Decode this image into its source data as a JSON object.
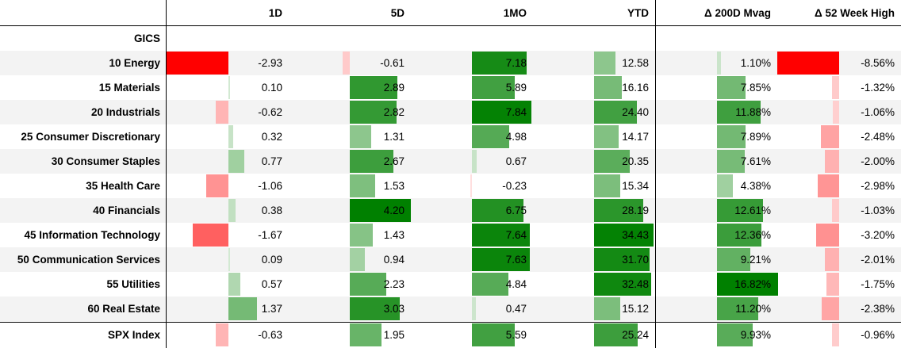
{
  "table": {
    "columns": [
      "1D",
      "5D",
      "1MO",
      "YTD",
      "Δ 200D Mvag",
      "Δ 52 Week High"
    ],
    "row_header_label": "GICS",
    "rows": [
      {
        "label": "10 Energy",
        "values": [
          "-2.93",
          "-0.61",
          "7.18",
          "12.58",
          "1.10%",
          "-8.56%"
        ],
        "shade": [
          -1.0,
          -0.12,
          0.9,
          0.35,
          0.07,
          -1.0
        ]
      },
      {
        "label": "15 Materials",
        "values": [
          "0.10",
          "2.89",
          "5.89",
          "16.16",
          "7.85%",
          "-1.32%"
        ],
        "shade": [
          0.03,
          0.78,
          0.7,
          0.45,
          0.47,
          -0.12
        ]
      },
      {
        "label": "20 Industrials",
        "values": [
          "-0.62",
          "2.82",
          "7.84",
          "24.40",
          "11.88%",
          "-1.06%"
        ],
        "shade": [
          -0.21,
          0.76,
          0.98,
          0.7,
          0.71,
          -0.1
        ]
      },
      {
        "label": "25 Consumer Discretionary",
        "values": [
          "0.32",
          "1.31",
          "4.98",
          "14.17",
          "7.89%",
          "-2.48%"
        ],
        "shade": [
          0.08,
          0.35,
          0.61,
          0.4,
          0.47,
          -0.29
        ]
      },
      {
        "label": "30 Consumer Staples",
        "values": [
          "0.77",
          "2.67",
          "0.67",
          "20.35",
          "7.61%",
          "-2.00%"
        ],
        "shade": [
          0.26,
          0.72,
          0.08,
          0.58,
          0.45,
          -0.23
        ]
      },
      {
        "label": "35 Health Care",
        "values": [
          "-1.06",
          "1.53",
          "-0.23",
          "15.34",
          "4.38%",
          "-2.98%"
        ],
        "shade": [
          -0.36,
          0.42,
          -0.03,
          0.43,
          0.26,
          -0.35
        ]
      },
      {
        "label": "40 Financials",
        "values": [
          "0.38",
          "4.20",
          "6.75",
          "28.19",
          "12.61%",
          "-1.03%"
        ],
        "shade": [
          0.11,
          1.0,
          0.84,
          0.8,
          0.75,
          -0.12
        ]
      },
      {
        "label": "45 Information Technology",
        "values": [
          "-1.67",
          "1.43",
          "7.64",
          "34.43",
          "12.36%",
          "-3.20%"
        ],
        "shade": [
          -0.58,
          0.38,
          0.95,
          0.98,
          0.73,
          -0.37
        ]
      },
      {
        "label": "50 Communication Services",
        "values": [
          "0.09",
          "0.94",
          "7.63",
          "31.70",
          "9.21%",
          "-2.01%"
        ],
        "shade": [
          0.03,
          0.25,
          0.95,
          0.91,
          0.55,
          -0.23
        ]
      },
      {
        "label": "55 Utilities",
        "values": [
          "0.57",
          "2.23",
          "4.84",
          "32.48",
          "16.82%",
          "-1.75%"
        ],
        "shade": [
          0.19,
          0.6,
          0.6,
          0.93,
          1.0,
          -0.2
        ]
      },
      {
        "label": "60 Real Estate",
        "values": [
          "1.37",
          "3.03",
          "0.47",
          "15.12",
          "11.20%",
          "-2.38%"
        ],
        "shade": [
          0.46,
          0.82,
          0.06,
          0.43,
          0.67,
          -0.28
        ]
      }
    ],
    "total_row": {
      "label": "SPX Index",
      "values": [
        "-0.63",
        "1.95",
        "5.59",
        "25.24",
        "9.93%",
        "-0.96%"
      ],
      "shade": [
        -0.21,
        0.52,
        0.7,
        0.72,
        0.59,
        -0.11
      ]
    }
  },
  "colors": {
    "positive": "#008000",
    "negative": "#ff0000",
    "stripe": "#f3f3f3",
    "line": "#000000"
  },
  "chart_data": {
    "type": "table",
    "columns": [
      "1D",
      "5D",
      "1MO",
      "YTD",
      "Δ 200D Mvag",
      "Δ 52 Week High"
    ],
    "categories": [
      "10 Energy",
      "15 Materials",
      "20 Industrials",
      "25 Consumer Discretionary",
      "30 Consumer Staples",
      "35 Health Care",
      "40 Financials",
      "45 Information Technology",
      "50 Communication Services",
      "55 Utilities",
      "60 Real Estate",
      "SPX Index"
    ],
    "series": [
      {
        "name": "1D",
        "values": [
          -2.93,
          0.1,
          -0.62,
          0.32,
          0.77,
          -1.06,
          0.38,
          -1.67,
          0.09,
          0.57,
          1.37,
          -0.63
        ]
      },
      {
        "name": "5D",
        "values": [
          -0.61,
          2.89,
          2.82,
          1.31,
          2.67,
          1.53,
          4.2,
          1.43,
          0.94,
          2.23,
          3.03,
          1.95
        ]
      },
      {
        "name": "1MO",
        "values": [
          7.18,
          5.89,
          7.84,
          4.98,
          0.67,
          -0.23,
          6.75,
          7.64,
          7.63,
          4.84,
          0.47,
          5.59
        ]
      },
      {
        "name": "YTD",
        "values": [
          12.58,
          16.16,
          24.4,
          14.17,
          20.35,
          15.34,
          28.19,
          34.43,
          31.7,
          32.48,
          15.12,
          25.24
        ]
      },
      {
        "name": "Δ 200D Mvag",
        "values": [
          1.1,
          7.85,
          11.88,
          7.89,
          7.61,
          4.38,
          12.61,
          12.36,
          9.21,
          16.82,
          11.2,
          9.93
        ]
      },
      {
        "name": "Δ 52 Week High",
        "values": [
          -8.56,
          -1.32,
          -1.06,
          -2.48,
          -2.0,
          -2.98,
          -1.03,
          -3.2,
          -2.01,
          -1.75,
          -2.38,
          -0.96
        ]
      }
    ]
  }
}
